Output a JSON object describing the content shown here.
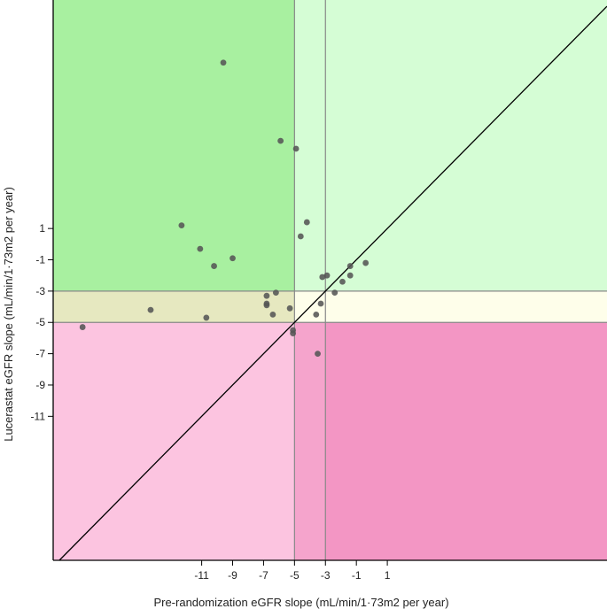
{
  "chart_data": {
    "type": "scatter",
    "title": "",
    "xlabel": "Pre-randomization eGFR slope (mL/min/1·73m2 per year)",
    "ylabel": "Lucerastat eGFR slope (mL/min/1·73m2 per year)",
    "xlim": [
      -20.6,
      15.2
    ],
    "ylim": [
      -20.2,
      15.6
    ],
    "x_ticks": [
      -11,
      -9,
      -7,
      -5,
      -3,
      -1,
      1
    ],
    "y_ticks": [
      1,
      -1,
      -3,
      -5,
      -7,
      -9,
      -11
    ],
    "reference_lines": {
      "x": [
        -5,
        -3
      ],
      "y": [
        -3,
        -5
      ],
      "identity_line": true
    },
    "regions": [
      {
        "x": [
          -20.6,
          -5
        ],
        "y": [
          -3,
          15.6
        ],
        "color": "#a8f0a0"
      },
      {
        "x": [
          -5,
          15.2
        ],
        "y": [
          -3,
          15.6
        ],
        "color": "#d5fdd5"
      },
      {
        "x": [
          -20.6,
          -5
        ],
        "y": [
          -5,
          -3
        ],
        "color": "#e6e8c0"
      },
      {
        "x": [
          -5,
          15.2
        ],
        "y": [
          -5,
          -3
        ],
        "color": "#fefeea"
      },
      {
        "x": [
          -20.6,
          -5
        ],
        "y": [
          -20.2,
          -5
        ],
        "color": "#fcc4e0"
      },
      {
        "x": [
          -5,
          -3
        ],
        "y": [
          -20.2,
          -5
        ],
        "color": "#f5a4cc"
      },
      {
        "x": [
          -3,
          15.2
        ],
        "y": [
          -20.2,
          -5
        ],
        "color": "#f396c4"
      }
    ],
    "points": [
      {
        "x": -18.7,
        "y": -5.3
      },
      {
        "x": -14.3,
        "y": -4.2
      },
      {
        "x": -12.3,
        "y": 1.2
      },
      {
        "x": -11.1,
        "y": -0.3
      },
      {
        "x": -10.7,
        "y": -4.7
      },
      {
        "x": -10.2,
        "y": -1.4
      },
      {
        "x": -9.6,
        "y": 11.6
      },
      {
        "x": -9.0,
        "y": -0.9
      },
      {
        "x": -6.8,
        "y": -3.3
      },
      {
        "x": -6.8,
        "y": -3.8
      },
      {
        "x": -6.8,
        "y": -3.9
      },
      {
        "x": -6.4,
        "y": -4.5
      },
      {
        "x": -6.2,
        "y": -3.1
      },
      {
        "x": -5.9,
        "y": 6.6
      },
      {
        "x": -5.3,
        "y": -4.1
      },
      {
        "x": -5.1,
        "y": -5.5
      },
      {
        "x": -5.1,
        "y": -5.7
      },
      {
        "x": -4.9,
        "y": 6.1
      },
      {
        "x": -4.6,
        "y": 0.5
      },
      {
        "x": -4.2,
        "y": 1.4
      },
      {
        "x": -3.6,
        "y": -4.5
      },
      {
        "x": -3.5,
        "y": -7.0
      },
      {
        "x": -3.3,
        "y": -3.8
      },
      {
        "x": -3.2,
        "y": -2.1
      },
      {
        "x": -2.9,
        "y": -2.0
      },
      {
        "x": -2.4,
        "y": -3.1
      },
      {
        "x": -1.9,
        "y": -2.4
      },
      {
        "x": -1.4,
        "y": -1.4
      },
      {
        "x": -1.4,
        "y": -2.0
      },
      {
        "x": -0.4,
        "y": -1.2
      }
    ],
    "point_color": "#555555",
    "grid": false
  }
}
